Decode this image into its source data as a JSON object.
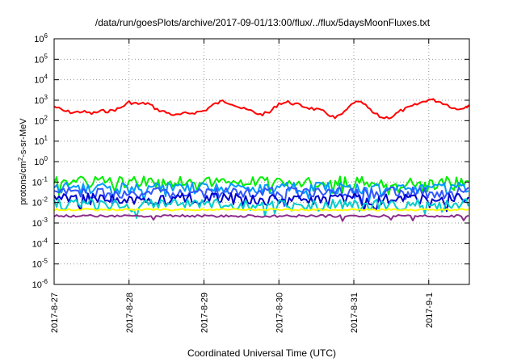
{
  "chart_data": {
    "type": "line",
    "title": "/data/run/goesPlots/archive/2017-09-01/13:00/flux/../flux/5daysMoonFluxes.txt",
    "xlabel": "Coordinated Universal Time (UTC)",
    "ylabel_parts": {
      "base": "protons/cm",
      "sup": "2",
      "rest": "-s-sr-MeV"
    },
    "x_range_days": [
      "2017-08-27",
      "2017-09-01T13:00"
    ],
    "x_ticks": [
      "2017-8-27",
      "2017-8-28",
      "2017-8-29",
      "2017-8-30",
      "2017-8-31",
      "2017-9-1"
    ],
    "y_scale": "log",
    "y_ticks": [
      {
        "base": "10",
        "exp": "6"
      },
      {
        "base": "10",
        "exp": "5"
      },
      {
        "base": "10",
        "exp": "4"
      },
      {
        "base": "10",
        "exp": "3"
      },
      {
        "base": "10",
        "exp": "2"
      },
      {
        "base": "10",
        "exp": "1"
      },
      {
        "base": "10",
        "exp": "0"
      },
      {
        "base": "10",
        "exp": "-1"
      },
      {
        "base": "10",
        "exp": "-2"
      },
      {
        "base": "10",
        "exp": "-3"
      },
      {
        "base": "10",
        "exp": "-4"
      },
      {
        "base": "10",
        "exp": "-5"
      },
      {
        "base": "10",
        "exp": "-6"
      }
    ],
    "ylim_log10": [
      -6,
      6
    ],
    "grid": true,
    "series": [
      {
        "color": "#ff0000",
        "points": [
          [
            "2017-08-27T00:00",
            500
          ],
          [
            "2017-08-27T03:00",
            300
          ],
          [
            "2017-08-27T06:00",
            250
          ],
          [
            "2017-08-27T09:00",
            280
          ],
          [
            "2017-08-27T12:00",
            220
          ],
          [
            "2017-08-27T15:00",
            290
          ],
          [
            "2017-08-27T18:00",
            300
          ],
          [
            "2017-08-27T21:00",
            400
          ],
          [
            "2017-08-28T00:00",
            800
          ],
          [
            "2017-08-28T03:00",
            650
          ],
          [
            "2017-08-28T06:00",
            700
          ],
          [
            "2017-08-28T09:00",
            350
          ],
          [
            "2017-08-28T12:00",
            250
          ],
          [
            "2017-08-28T15:00",
            180
          ],
          [
            "2017-08-28T18:00",
            220
          ],
          [
            "2017-08-28T21:00",
            250
          ],
          [
            "2017-08-29T00:00",
            300
          ],
          [
            "2017-08-29T03:00",
            600
          ],
          [
            "2017-08-29T06:00",
            900
          ],
          [
            "2017-08-29T09:00",
            700
          ],
          [
            "2017-08-29T12:00",
            400
          ],
          [
            "2017-08-29T15:00",
            300
          ],
          [
            "2017-08-29T18:00",
            200
          ],
          [
            "2017-08-29T21:00",
            250
          ],
          [
            "2017-08-30T00:00",
            700
          ],
          [
            "2017-08-30T03:00",
            800
          ],
          [
            "2017-08-30T06:00",
            600
          ],
          [
            "2017-08-30T09:00",
            450
          ],
          [
            "2017-08-30T12:00",
            350
          ],
          [
            "2017-08-30T15:00",
            250
          ],
          [
            "2017-08-30T18:00",
            130
          ],
          [
            "2017-08-30T21:00",
            250
          ],
          [
            "2017-08-31T00:00",
            800
          ],
          [
            "2017-08-31T03:00",
            700
          ],
          [
            "2017-08-31T06:00",
            250
          ],
          [
            "2017-08-31T09:00",
            140
          ],
          [
            "2017-08-31T12:00",
            150
          ],
          [
            "2017-08-31T15:00",
            300
          ],
          [
            "2017-08-31T18:00",
            450
          ],
          [
            "2017-08-31T21:00",
            700
          ],
          [
            "2017-09-01T00:00",
            1100
          ],
          [
            "2017-09-01T03:00",
            900
          ],
          [
            "2017-09-01T06:00",
            600
          ],
          [
            "2017-09-01T09:00",
            350
          ],
          [
            "2017-09-01T12:00",
            500
          ],
          [
            "2017-09-01T13:00",
            600
          ]
        ]
      },
      {
        "color": "#00ee00",
        "points": [
          [
            "2017-08-27T00:00",
            0.1
          ],
          [
            "2017-09-01T13:00",
            0.1
          ]
        ]
      },
      {
        "color": "#0099ff",
        "points": [
          [
            "2017-08-27T00:00",
            0.05
          ],
          [
            "2017-09-01T13:00",
            0.05
          ]
        ]
      },
      {
        "color": "#3355ff",
        "points": [
          [
            "2017-08-27T00:00",
            0.03
          ],
          [
            "2017-09-01T13:00",
            0.03
          ]
        ]
      },
      {
        "color": "#0000cc",
        "points": [
          [
            "2017-08-27T00:00",
            0.015
          ],
          [
            "2017-09-01T13:00",
            0.015
          ]
        ]
      },
      {
        "color": "#00cccc",
        "points": [
          [
            "2017-08-27T00:00",
            0.008
          ],
          [
            "2017-09-01T13:00",
            0.008
          ]
        ]
      },
      {
        "color": "#ffff00",
        "points": [
          [
            "2017-08-27T00:00",
            0.0045
          ],
          [
            "2017-09-01T13:00",
            0.0045
          ]
        ]
      },
      {
        "color": "#8b2c8b",
        "points": [
          [
            "2017-08-27T00:00",
            0.0022
          ],
          [
            "2017-09-01T13:00",
            0.0022
          ]
        ]
      }
    ]
  }
}
